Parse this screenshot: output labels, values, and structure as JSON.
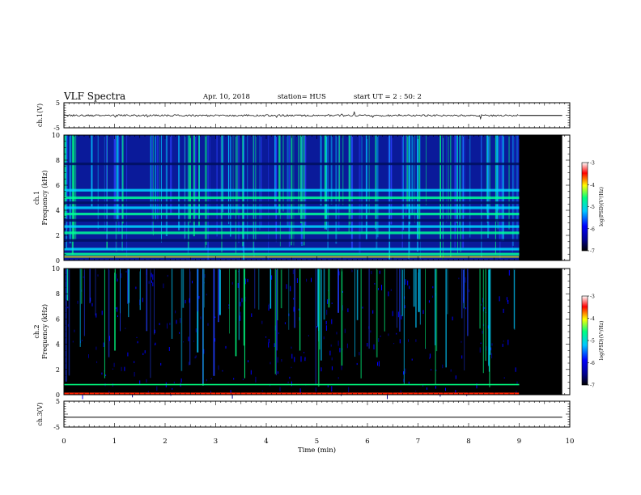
{
  "header": {
    "title": "VLF Spectra",
    "date": "Apr. 10, 2018",
    "station": "station= HUS",
    "start": "start  UT =   2 : 50: 2"
  },
  "colors": {
    "trace": "#000000",
    "background_plot": "#000000",
    "colormap": [
      "#000000",
      "#00008b",
      "#0000ff",
      "#00c8ff",
      "#00ff80",
      "#ffff00",
      "#ff0000",
      "#ffffff"
    ]
  },
  "chart_data": [
    {
      "type": "line",
      "id": "ch1-waveform",
      "ylabel": "ch.1(V)",
      "ylim": [
        -5,
        5
      ],
      "yticks": [
        "5",
        "-5"
      ],
      "x": [
        0,
        9,
        9.85
      ],
      "values_note_free": true,
      "y": [
        -0.1,
        -0.1,
        -0.1
      ],
      "xlim": [
        0,
        10
      ]
    },
    {
      "type": "heatmap",
      "id": "ch1-spectrogram",
      "ylabel": "ch.1 Frequency (kHz)",
      "ylabel_line1": "ch.1",
      "ylabel_line2": "Frequency (kHz)",
      "ylim": [
        0,
        10
      ],
      "yticks": [
        "0",
        "2",
        "4",
        "6",
        "8",
        "10"
      ],
      "xlim": [
        0,
        10
      ],
      "data_end_min": 9,
      "panel_end_min": 9.85,
      "bands_khz": [
        0.5,
        0.9,
        1.6,
        2.2,
        2.7,
        3.2,
        3.7,
        4.2,
        4.6,
        5.0,
        5.6,
        7.7
      ],
      "colorbar": {
        "label": "log(PSD)(V²/Hz)",
        "range": [
          -7,
          -3
        ],
        "ticks": [
          "-3",
          "-4",
          "-5",
          "-6",
          "-7"
        ]
      }
    },
    {
      "type": "heatmap",
      "id": "ch2-spectrogram",
      "ylabel": "ch.2 Frequency (kHz)",
      "ylabel_line1": "ch.2",
      "ylabel_line2": "Frequency (kHz)",
      "ylim": [
        0,
        10
      ],
      "yticks": [
        "0",
        "2",
        "4",
        "6",
        "8",
        "10"
      ],
      "xlim": [
        0,
        10
      ],
      "data_end_min": 9,
      "panel_end_min": 9.85,
      "bands_khz": [
        0.8,
        0.1
      ],
      "colorbar": {
        "label": "log(PSD)(V²/Hz)",
        "range": [
          -7,
          -3
        ],
        "ticks": [
          "-3",
          "-4",
          "-5",
          "-6",
          "-7"
        ]
      }
    },
    {
      "type": "line",
      "id": "ch3-waveform",
      "ylabel": "ch.3(V)",
      "ylim": [
        -5,
        5
      ],
      "yticks": [
        "5",
        "-5"
      ],
      "x": [
        0,
        9.85
      ],
      "y": [
        -1.2,
        -1.2
      ],
      "xlim": [
        0,
        10
      ]
    }
  ],
  "xaxis": {
    "label": "Time (min)",
    "ticks": [
      "0",
      "1",
      "2",
      "3",
      "4",
      "5",
      "6",
      "7",
      "8",
      "9",
      "10"
    ]
  }
}
